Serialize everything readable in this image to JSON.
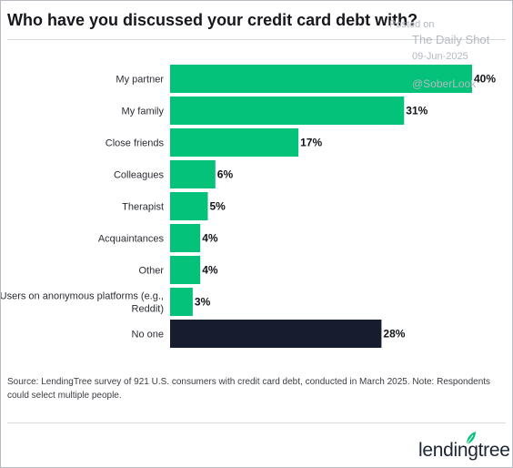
{
  "header": {
    "title": "Who have you discussed your credit card debt with?"
  },
  "watermark": {
    "posted": "Posted on",
    "outlet": "The Daily Shot",
    "date": "09-Jun-2025",
    "handle": "@SoberLook"
  },
  "chart_data": {
    "type": "bar",
    "orientation": "horizontal",
    "categories": [
      "My partner",
      "My family",
      "Close friends",
      "Colleagues",
      "Therapist",
      "Acquaintances",
      "Other",
      "Users on anonymous platforms (e.g., Reddit)",
      "No one"
    ],
    "category_lines": [
      [
        "My partner"
      ],
      [
        "My family"
      ],
      [
        "Close friends"
      ],
      [
        "Colleagues"
      ],
      [
        "Therapist"
      ],
      [
        "Acquaintances"
      ],
      [
        "Other"
      ],
      [
        "Users on anonymous platforms (e.g.,",
        "Reddit)"
      ],
      [
        "No one"
      ]
    ],
    "values": [
      40,
      31,
      17,
      6,
      5,
      4,
      4,
      3,
      28
    ],
    "value_labels": [
      "40%",
      "31%",
      "17%",
      "6%",
      "5%",
      "4%",
      "4%",
      "3%",
      "28%"
    ],
    "unit": "%",
    "xlim": [
      0,
      40
    ],
    "colors": {
      "default": "#05c27a",
      "highlight": "#151d2e"
    },
    "highlight_index": 8,
    "grid": false
  },
  "footer": {
    "source": "Source: LendingTree survey of 921 U.S. consumers with credit card debt, conducted in March 2025. Note: Respondents could select multiple people.",
    "brand": "lendingtree",
    "brand_colors": {
      "text": "#1d2433",
      "leaf": "#05c27a"
    }
  }
}
